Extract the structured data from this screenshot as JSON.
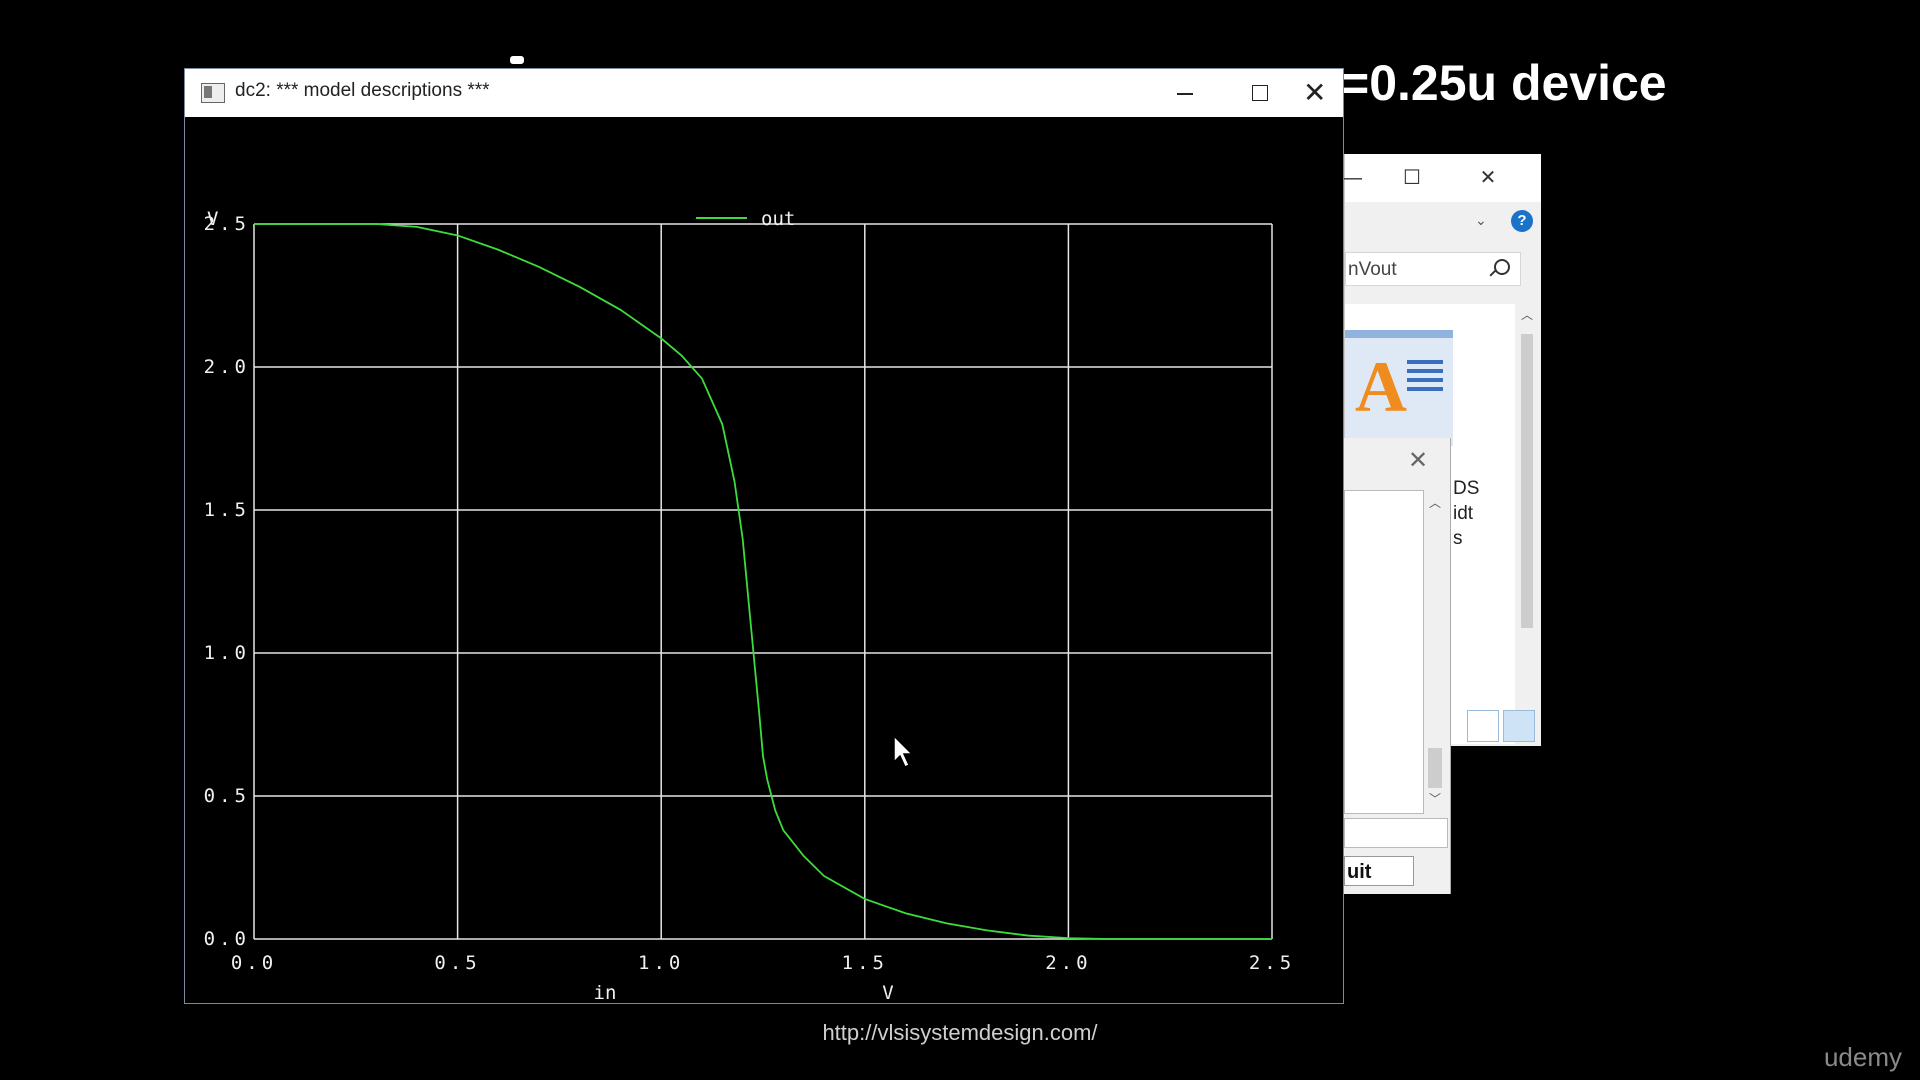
{
  "slide": {
    "title": "=0.25u device"
  },
  "main_window": {
    "title": "dc2: *** model descriptions ***"
  },
  "background_window": {
    "search_value": "nVout",
    "details_lines": [
      "DS",
      "idt",
      "s"
    ]
  },
  "dialog": {
    "quit_label": "uit"
  },
  "footer": {
    "url": "http://vlsisystemdesign.com/",
    "watermark": "udemy"
  },
  "chart_data": {
    "type": "line",
    "ylabel": "V",
    "xlabel": "in",
    "xunit": "V",
    "xlim": [
      0.0,
      2.5
    ],
    "ylim": [
      0.0,
      2.5
    ],
    "x_ticks": [
      "0.0",
      "0.5",
      "1.0",
      "1.5",
      "2.0",
      "2.5"
    ],
    "y_ticks": [
      "0.0",
      "0.5",
      "1.0",
      "1.5",
      "2.0",
      "2.5"
    ],
    "grid": true,
    "legend": "top-center",
    "series": [
      {
        "name": "out",
        "color": "#3ddc3d",
        "x": [
          0.0,
          0.3,
          0.4,
          0.5,
          0.6,
          0.7,
          0.8,
          0.9,
          1.0,
          1.05,
          1.1,
          1.15,
          1.18,
          1.2,
          1.22,
          1.24,
          1.25,
          1.26,
          1.28,
          1.3,
          1.35,
          1.4,
          1.5,
          1.6,
          1.7,
          1.8,
          1.9,
          2.0,
          2.1,
          2.5
        ],
        "y": [
          2.5,
          2.5,
          2.49,
          2.46,
          2.41,
          2.35,
          2.28,
          2.2,
          2.1,
          2.04,
          1.96,
          1.8,
          1.6,
          1.4,
          1.1,
          0.8,
          0.64,
          0.56,
          0.45,
          0.38,
          0.29,
          0.22,
          0.14,
          0.09,
          0.055,
          0.03,
          0.012,
          0.003,
          0.0,
          0.0
        ]
      }
    ]
  }
}
